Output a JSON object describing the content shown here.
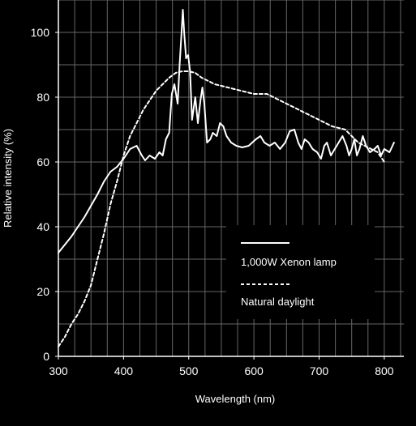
{
  "chart_data": {
    "type": "line",
    "title": "",
    "xlabel": "Wavelength (nm)",
    "ylabel": "Relative intensity (%)",
    "xlim": [
      300,
      830
    ],
    "ylim": [
      0,
      110
    ],
    "x_ticks": [
      300,
      400,
      500,
      600,
      700,
      800
    ],
    "y_ticks": [
      0,
      20,
      40,
      60,
      80,
      100
    ],
    "grid": true,
    "legend_position": "center-right",
    "colors": {
      "background": "#000000",
      "foreground": "#ffffff",
      "grid": "#666666"
    },
    "series": [
      {
        "name": "1,000W Xenon lamp",
        "style": "solid",
        "points": [
          [
            300,
            32
          ],
          [
            320,
            37
          ],
          [
            340,
            43
          ],
          [
            360,
            50
          ],
          [
            370,
            54
          ],
          [
            380,
            57
          ],
          [
            390,
            58.5
          ],
          [
            400,
            61
          ],
          [
            410,
            64
          ],
          [
            420,
            65
          ],
          [
            428,
            62
          ],
          [
            433,
            60.5
          ],
          [
            440,
            62
          ],
          [
            448,
            61
          ],
          [
            455,
            63
          ],
          [
            460,
            62
          ],
          [
            465,
            67
          ],
          [
            470,
            69
          ],
          [
            474,
            81
          ],
          [
            478,
            84
          ],
          [
            483,
            78
          ],
          [
            486,
            90
          ],
          [
            489,
            100
          ],
          [
            491,
            107
          ],
          [
            493,
            100
          ],
          [
            496,
            92
          ],
          [
            499,
            93
          ],
          [
            502,
            88
          ],
          [
            505,
            73
          ],
          [
            510,
            80
          ],
          [
            514,
            72
          ],
          [
            518,
            79
          ],
          [
            521,
            83
          ],
          [
            524,
            78
          ],
          [
            528,
            66
          ],
          [
            533,
            67
          ],
          [
            537,
            69
          ],
          [
            543,
            68
          ],
          [
            548,
            72
          ],
          [
            553,
            71
          ],
          [
            558,
            68
          ],
          [
            565,
            66
          ],
          [
            573,
            65
          ],
          [
            582,
            64.5
          ],
          [
            592,
            65
          ],
          [
            603,
            67
          ],
          [
            610,
            68
          ],
          [
            616,
            66
          ],
          [
            624,
            65
          ],
          [
            632,
            66
          ],
          [
            640,
            64
          ],
          [
            648,
            66
          ],
          [
            655,
            69.5
          ],
          [
            662,
            70
          ],
          [
            668,
            66
          ],
          [
            673,
            64
          ],
          [
            678,
            67
          ],
          [
            684,
            66
          ],
          [
            690,
            64
          ],
          [
            697,
            63
          ],
          [
            703,
            61
          ],
          [
            708,
            65
          ],
          [
            712,
            66
          ],
          [
            718,
            62
          ],
          [
            724,
            64
          ],
          [
            730,
            66
          ],
          [
            736,
            68
          ],
          [
            742,
            65
          ],
          [
            746,
            62
          ],
          [
            750,
            64
          ],
          [
            754,
            67
          ],
          [
            758,
            62
          ],
          [
            762,
            64
          ],
          [
            767,
            68
          ],
          [
            772,
            65
          ],
          [
            778,
            63
          ],
          [
            785,
            64
          ],
          [
            790,
            65
          ],
          [
            795,
            62
          ],
          [
            800,
            64
          ],
          [
            808,
            63
          ],
          [
            815,
            66
          ]
        ]
      },
      {
        "name": "Natural daylight",
        "style": "dashed",
        "points": [
          [
            300,
            3
          ],
          [
            310,
            6
          ],
          [
            320,
            10
          ],
          [
            330,
            13
          ],
          [
            340,
            17
          ],
          [
            350,
            22
          ],
          [
            360,
            30
          ],
          [
            370,
            38
          ],
          [
            380,
            47
          ],
          [
            390,
            54
          ],
          [
            400,
            62
          ],
          [
            410,
            68
          ],
          [
            420,
            72
          ],
          [
            430,
            76
          ],
          [
            440,
            79
          ],
          [
            450,
            82
          ],
          [
            460,
            84
          ],
          [
            470,
            86
          ],
          [
            480,
            87.5
          ],
          [
            490,
            88
          ],
          [
            500,
            88
          ],
          [
            510,
            87.5
          ],
          [
            520,
            86
          ],
          [
            530,
            85
          ],
          [
            540,
            84
          ],
          [
            550,
            83.5
          ],
          [
            560,
            83
          ],
          [
            570,
            82.5
          ],
          [
            580,
            82
          ],
          [
            590,
            81.5
          ],
          [
            600,
            81
          ],
          [
            610,
            81
          ],
          [
            620,
            81
          ],
          [
            630,
            80
          ],
          [
            640,
            79
          ],
          [
            650,
            78
          ],
          [
            660,
            77
          ],
          [
            670,
            76
          ],
          [
            680,
            75
          ],
          [
            690,
            74
          ],
          [
            700,
            73
          ],
          [
            710,
            72
          ],
          [
            720,
            71
          ],
          [
            730,
            70.5
          ],
          [
            740,
            70
          ],
          [
            750,
            68
          ],
          [
            760,
            66
          ],
          [
            770,
            65
          ],
          [
            780,
            64
          ],
          [
            790,
            63
          ],
          [
            800,
            60
          ]
        ]
      }
    ]
  }
}
